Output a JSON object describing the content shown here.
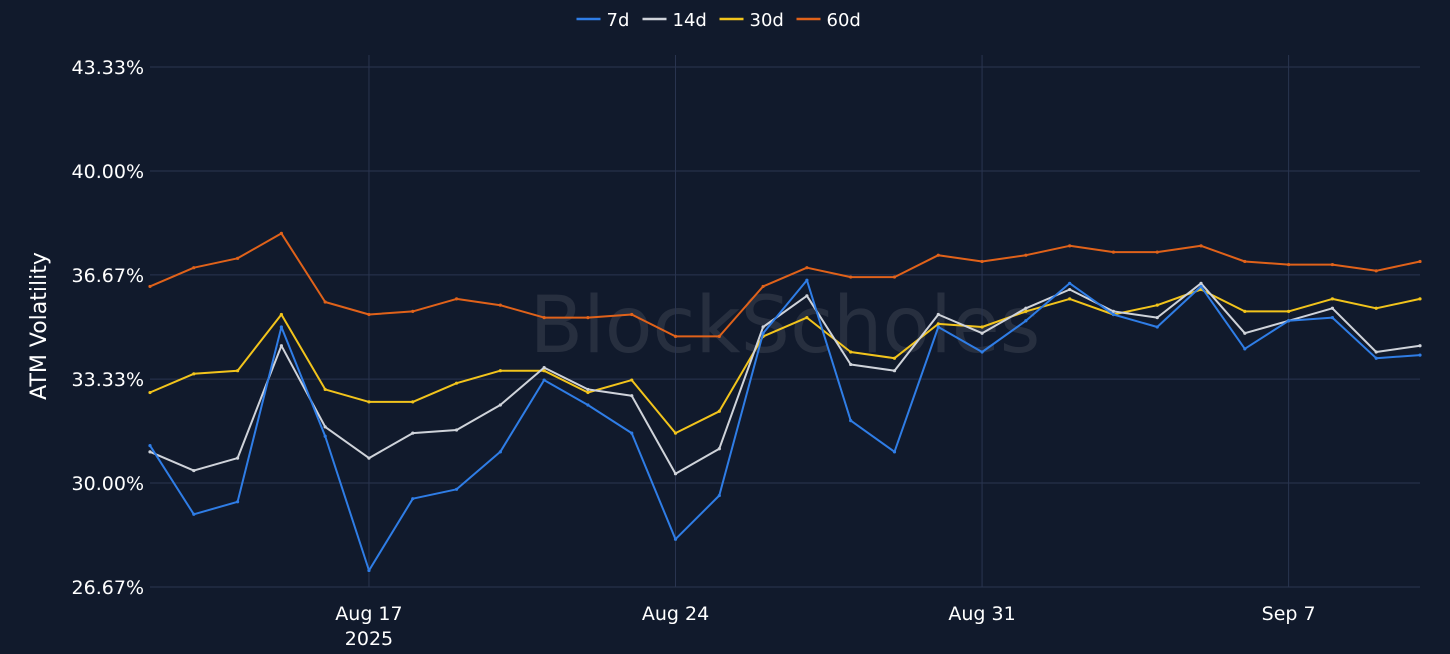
{
  "chart_data": {
    "type": "line",
    "xlabel": "",
    "ylabel": "ATM Volatility",
    "ylim": [
      26.67,
      43.33
    ],
    "yticks": [
      "26.67%",
      "30.00%",
      "33.33%",
      "36.67%",
      "40.00%",
      "43.33%"
    ],
    "yticks_values": [
      26.67,
      30.0,
      33.33,
      36.67,
      40.0,
      43.33
    ],
    "xlim": [
      "2025-08-12",
      "2025-09-10"
    ],
    "xticks": [
      {
        "date": "2025-08-17",
        "label": "Aug 17",
        "sublabel": "2025"
      },
      {
        "date": "2025-08-24",
        "label": "Aug 24",
        "sublabel": ""
      },
      {
        "date": "2025-08-31",
        "label": "Aug 31",
        "sublabel": ""
      },
      {
        "date": "2025-09-07",
        "label": "Sep 7",
        "sublabel": ""
      }
    ],
    "grid": true,
    "legend_position": "top-center",
    "watermark": "BlockScholes",
    "x": [
      "2025-08-12",
      "2025-08-13",
      "2025-08-14",
      "2025-08-15",
      "2025-08-16",
      "2025-08-17",
      "2025-08-18",
      "2025-08-19",
      "2025-08-20",
      "2025-08-21",
      "2025-08-22",
      "2025-08-23",
      "2025-08-24",
      "2025-08-25",
      "2025-08-26",
      "2025-08-27",
      "2025-08-28",
      "2025-08-29",
      "2025-08-30",
      "2025-08-31",
      "2025-09-01",
      "2025-09-02",
      "2025-09-03",
      "2025-09-04",
      "2025-09-05",
      "2025-09-06",
      "2025-09-07",
      "2025-09-08",
      "2025-09-09",
      "2025-09-10"
    ],
    "series": [
      {
        "name": "7d",
        "color": "#2f7de6",
        "values": [
          31.2,
          29.0,
          29.4,
          35.0,
          31.5,
          27.2,
          29.5,
          29.8,
          31.0,
          33.3,
          32.5,
          31.6,
          28.2,
          29.6,
          34.8,
          36.5,
          32.0,
          31.0,
          35.0,
          34.2,
          35.2,
          36.4,
          35.4,
          35.0,
          36.3,
          34.3,
          35.2,
          35.3,
          34.0,
          34.1
        ]
      },
      {
        "name": "14d",
        "color": "#cfd3da",
        "values": [
          31.0,
          30.4,
          30.8,
          34.4,
          31.8,
          30.8,
          31.6,
          31.7,
          32.5,
          33.7,
          33.0,
          32.8,
          30.3,
          31.1,
          35.0,
          36.0,
          33.8,
          33.6,
          35.4,
          34.8,
          35.6,
          36.2,
          35.5,
          35.3,
          36.4,
          34.8,
          35.2,
          35.6,
          34.2,
          34.4
        ]
      },
      {
        "name": "30d",
        "color": "#f2c41c",
        "values": [
          32.9,
          33.5,
          33.6,
          35.4,
          33.0,
          32.6,
          32.6,
          33.2,
          33.6,
          33.6,
          32.9,
          33.3,
          31.6,
          32.3,
          34.7,
          35.3,
          34.2,
          34.0,
          35.1,
          35.0,
          35.5,
          35.9,
          35.4,
          35.7,
          36.2,
          35.5,
          35.5,
          35.9,
          35.6,
          35.9
        ]
      },
      {
        "name": "60d",
        "color": "#e0621a",
        "values": [
          36.3,
          36.9,
          37.2,
          38.0,
          35.8,
          35.4,
          35.5,
          35.9,
          35.7,
          35.3,
          35.3,
          35.4,
          34.7,
          34.7,
          36.3,
          36.9,
          36.6,
          36.6,
          37.3,
          37.1,
          37.3,
          37.6,
          37.4,
          37.4,
          37.6,
          37.1,
          37.0,
          37.0,
          36.8,
          37.1
        ]
      }
    ]
  }
}
